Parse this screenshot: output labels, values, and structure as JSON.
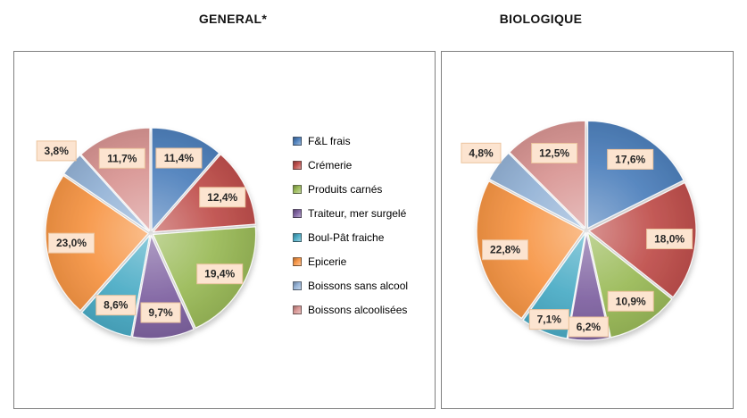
{
  "chart_data": [
    {
      "type": "pie",
      "title": "GENERAL*",
      "categories": [
        "F&L frais",
        "Crémerie",
        "Produits carnés",
        "Traiteur, mer surgelé",
        "Boul-Pât fraiche",
        "Epicerie",
        "Boissons sans alcool",
        "Boissons alcoolisées"
      ],
      "values": [
        11.4,
        12.4,
        19.4,
        9.7,
        8.6,
        23.0,
        3.8,
        11.7
      ],
      "labels": [
        "11,4%",
        "12,4%",
        "19,4%",
        "9,7%",
        "8,6%",
        "23,0%",
        "3,8%",
        "11,7%"
      ],
      "colors": [
        "#4F81BD",
        "#C0504D",
        "#9BBB59",
        "#8064A2",
        "#4BACC6",
        "#F79646",
        "#95B3D7",
        "#D99694"
      ],
      "start_angle_deg": 0,
      "direction": "clockwise",
      "has_legend": true,
      "legend_position": "right"
    },
    {
      "type": "pie",
      "title": "BIOLOGIQUE",
      "categories": [
        "F&L frais",
        "Crémerie",
        "Produits carnés",
        "Traiteur, mer surgelé",
        "Boul-Pât fraiche",
        "Epicerie",
        "Boissons sans alcool",
        "Boissons alcoolisées"
      ],
      "values": [
        17.6,
        18.0,
        10.9,
        6.2,
        7.1,
        22.8,
        4.8,
        12.5
      ],
      "labels": [
        "17,6%",
        "18,0%",
        "10,9%",
        "6,2%",
        "7,1%",
        "22,8%",
        "4,8%",
        "12,5%"
      ],
      "colors": [
        "#4F81BD",
        "#C0504D",
        "#9BBB59",
        "#8064A2",
        "#4BACC6",
        "#F79646",
        "#95B3D7",
        "#D99694"
      ],
      "start_angle_deg": 0,
      "direction": "clockwise",
      "has_legend": false,
      "legend_position": "none"
    }
  ],
  "styles": {
    "data_label_fill": "#FCE4D0",
    "data_label_border": "#ECC49E",
    "data_label_text": "#262626",
    "panel_border": "#7F7F7F",
    "title_color": "#141414",
    "background": "#FFFFFF"
  }
}
